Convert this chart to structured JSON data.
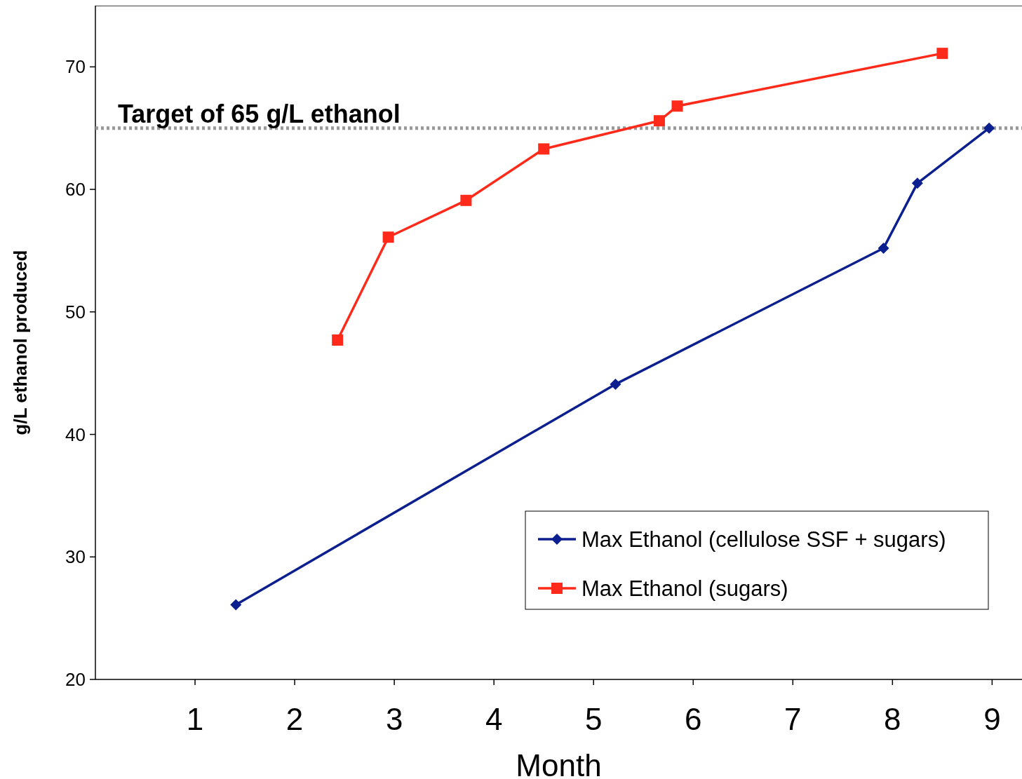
{
  "chart_data": {
    "type": "line",
    "xlabel": "Month",
    "ylabel": "g/L ethanol produced",
    "xlim": [
      0,
      9.3
    ],
    "xticks": [
      1,
      2,
      3,
      4,
      5,
      6,
      7,
      8,
      9
    ],
    "ylim": [
      20,
      75
    ],
    "yticks": [
      20,
      30,
      40,
      50,
      60,
      70
    ],
    "series": [
      {
        "name": "Max Ethanol (cellulose SSF + sugars)",
        "color": "#0c1f8f",
        "marker": "diamond",
        "x": [
          1.41,
          5.22,
          7.91,
          8.25,
          8.97
        ],
        "values": [
          26.1,
          44.1,
          55.2,
          60.5,
          65.0
        ]
      },
      {
        "name": "Max Ethanol (sugars)",
        "color": "#ff2a1a",
        "marker": "square",
        "x": [
          2.43,
          2.94,
          3.72,
          4.5,
          5.66,
          5.84,
          8.5
        ],
        "values": [
          47.7,
          56.1,
          59.1,
          63.3,
          65.6,
          66.8,
          71.1
        ]
      }
    ],
    "ref_lines": [
      {
        "axis": "y",
        "value": 65,
        "label": "Target of 65 g/L ethanol",
        "color": "#999999",
        "line_style": "dotted"
      }
    ],
    "legend": "bottom right",
    "grid": false
  }
}
